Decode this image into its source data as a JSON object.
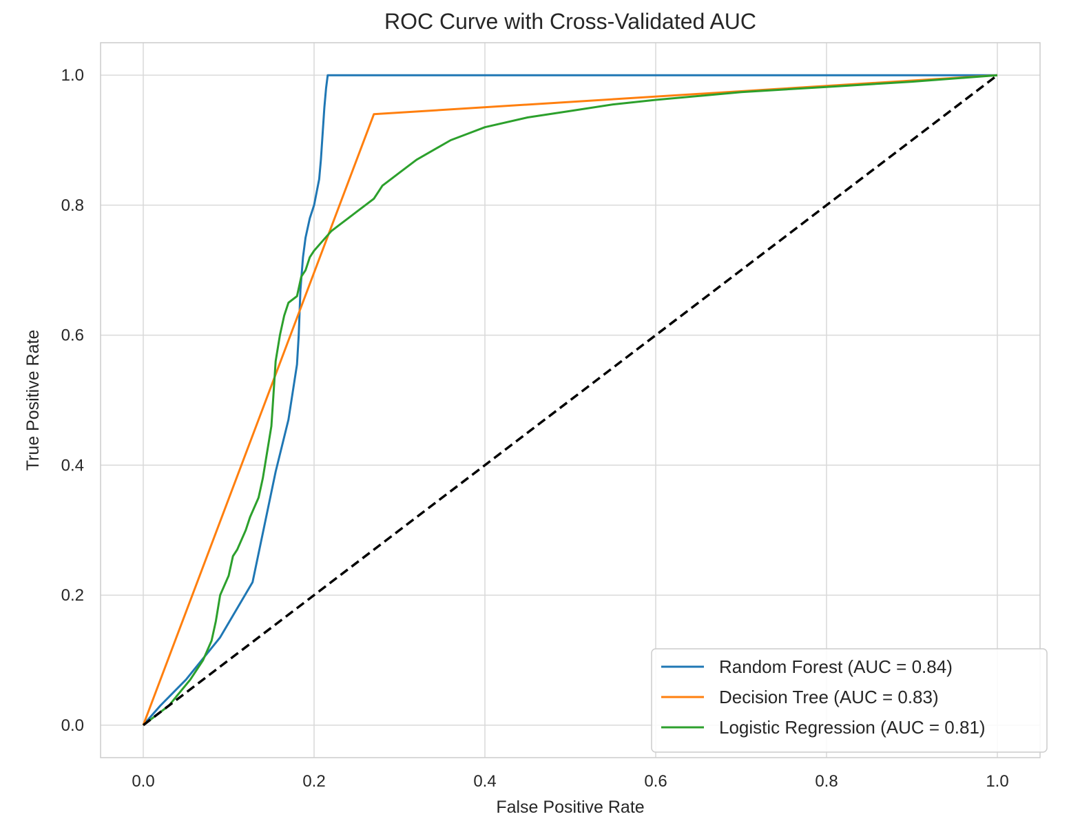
{
  "chart_data": {
    "type": "line",
    "title": "ROC Curve with Cross-Validated AUC",
    "xlabel": "False Positive Rate",
    "ylabel": "True Positive Rate",
    "xlim": [
      -0.05,
      1.05
    ],
    "ylim": [
      -0.05,
      1.05
    ],
    "xticks": [
      0.0,
      0.2,
      0.4,
      0.6,
      0.8,
      1.0
    ],
    "yticks": [
      0.0,
      0.2,
      0.4,
      0.6,
      0.8,
      1.0
    ],
    "xtick_labels": [
      "0.0",
      "0.2",
      "0.4",
      "0.6",
      "0.8",
      "1.0"
    ],
    "ytick_labels": [
      "0.0",
      "0.2",
      "0.4",
      "0.6",
      "0.8",
      "1.0"
    ],
    "grid": true,
    "legend_position": "bottom-right",
    "series": [
      {
        "name": "Random Forest (AUC = 0.84)",
        "color": "#1f77b4",
        "x": [
          0.0,
          0.02,
          0.05,
          0.09,
          0.128,
          0.155,
          0.17,
          0.18,
          0.182,
          0.184,
          0.187,
          0.19,
          0.195,
          0.2,
          0.203,
          0.206,
          0.208,
          0.21,
          0.212,
          0.214,
          0.216,
          1.0
        ],
        "y": [
          0.0,
          0.03,
          0.07,
          0.135,
          0.22,
          0.39,
          0.47,
          0.555,
          0.6,
          0.67,
          0.72,
          0.75,
          0.78,
          0.8,
          0.82,
          0.84,
          0.87,
          0.91,
          0.95,
          0.98,
          1.0,
          1.0
        ]
      },
      {
        "name": "Decision Tree (AUC = 0.83)",
        "color": "#ff7f0e",
        "x": [
          0.0,
          0.27,
          1.0
        ],
        "y": [
          0.0,
          0.94,
          1.0
        ]
      },
      {
        "name": "Logistic Regression (AUC = 0.81)",
        "color": "#2ca02c",
        "x": [
          0.0,
          0.03,
          0.055,
          0.07,
          0.08,
          0.085,
          0.09,
          0.1,
          0.105,
          0.11,
          0.12,
          0.125,
          0.135,
          0.14,
          0.145,
          0.15,
          0.152,
          0.155,
          0.16,
          0.165,
          0.17,
          0.18,
          0.185,
          0.19,
          0.195,
          0.2,
          0.21,
          0.22,
          0.23,
          0.24,
          0.25,
          0.26,
          0.27,
          0.28,
          0.3,
          0.32,
          0.34,
          0.36,
          0.38,
          0.4,
          0.45,
          0.5,
          0.55,
          0.6,
          0.65,
          0.7,
          0.8,
          0.9,
          1.0
        ],
        "y": [
          0.0,
          0.03,
          0.07,
          0.1,
          0.13,
          0.16,
          0.2,
          0.23,
          0.26,
          0.27,
          0.3,
          0.32,
          0.35,
          0.38,
          0.42,
          0.46,
          0.5,
          0.56,
          0.6,
          0.63,
          0.65,
          0.66,
          0.69,
          0.7,
          0.72,
          0.73,
          0.745,
          0.76,
          0.77,
          0.78,
          0.79,
          0.8,
          0.81,
          0.83,
          0.85,
          0.87,
          0.885,
          0.9,
          0.91,
          0.92,
          0.935,
          0.945,
          0.955,
          0.962,
          0.968,
          0.974,
          0.982,
          0.99,
          1.0
        ]
      },
      {
        "name": "",
        "color": "#000000",
        "dashed": true,
        "x": [
          0.0,
          1.0
        ],
        "y": [
          0.0,
          1.0
        ]
      }
    ]
  }
}
